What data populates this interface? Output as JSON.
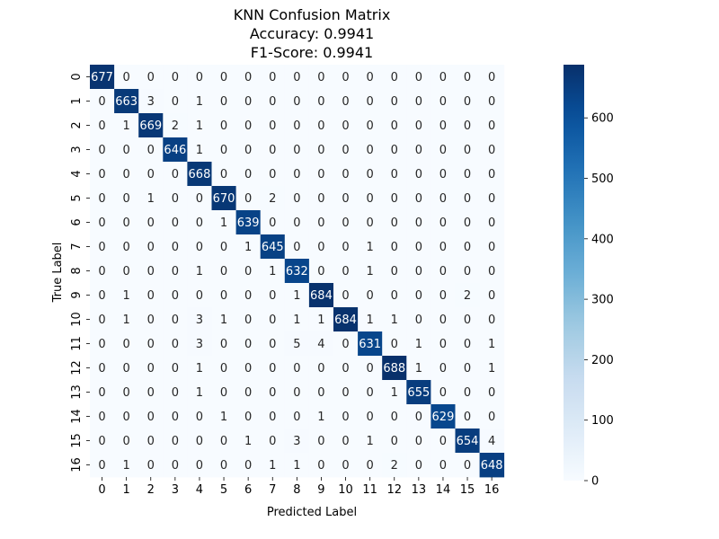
{
  "chart_data": {
    "type": "heatmap",
    "title_lines": [
      "KNN Confusion Matrix",
      "Accuracy: 0.9941",
      "F1-Score: 0.9941"
    ],
    "xlabel": "Predicted Label",
    "ylabel": "True Label",
    "x_categories": [
      "0",
      "1",
      "2",
      "3",
      "4",
      "5",
      "6",
      "7",
      "8",
      "9",
      "10",
      "11",
      "12",
      "13",
      "14",
      "15",
      "16"
    ],
    "y_categories": [
      "0",
      "1",
      "2",
      "3",
      "4",
      "5",
      "6",
      "7",
      "8",
      "9",
      "10",
      "11",
      "12",
      "13",
      "14",
      "15",
      "16"
    ],
    "matrix": [
      [
        677,
        0,
        0,
        0,
        0,
        0,
        0,
        0,
        0,
        0,
        0,
        0,
        0,
        0,
        0,
        0,
        0
      ],
      [
        0,
        663,
        3,
        0,
        1,
        0,
        0,
        0,
        0,
        0,
        0,
        0,
        0,
        0,
        0,
        0,
        0
      ],
      [
        0,
        1,
        669,
        2,
        1,
        0,
        0,
        0,
        0,
        0,
        0,
        0,
        0,
        0,
        0,
        0,
        0
      ],
      [
        0,
        0,
        0,
        646,
        1,
        0,
        0,
        0,
        0,
        0,
        0,
        0,
        0,
        0,
        0,
        0,
        0
      ],
      [
        0,
        0,
        0,
        0,
        668,
        0,
        0,
        0,
        0,
        0,
        0,
        0,
        0,
        0,
        0,
        0,
        0
      ],
      [
        0,
        0,
        1,
        0,
        0,
        670,
        0,
        2,
        0,
        0,
        0,
        0,
        0,
        0,
        0,
        0,
        0
      ],
      [
        0,
        0,
        0,
        0,
        0,
        1,
        639,
        0,
        0,
        0,
        0,
        0,
        0,
        0,
        0,
        0,
        0
      ],
      [
        0,
        0,
        0,
        0,
        0,
        0,
        1,
        645,
        0,
        0,
        0,
        1,
        0,
        0,
        0,
        0,
        0
      ],
      [
        0,
        0,
        0,
        0,
        1,
        0,
        0,
        1,
        632,
        0,
        0,
        1,
        0,
        0,
        0,
        0,
        0
      ],
      [
        0,
        1,
        0,
        0,
        0,
        0,
        0,
        0,
        1,
        684,
        0,
        0,
        0,
        0,
        0,
        2,
        0
      ],
      [
        0,
        1,
        0,
        0,
        3,
        1,
        0,
        0,
        1,
        1,
        684,
        1,
        1,
        0,
        0,
        0,
        0
      ],
      [
        0,
        0,
        0,
        0,
        3,
        0,
        0,
        0,
        5,
        4,
        0,
        631,
        0,
        1,
        0,
        0,
        1
      ],
      [
        0,
        0,
        0,
        0,
        1,
        0,
        0,
        0,
        0,
        0,
        0,
        0,
        688,
        1,
        0,
        0,
        1
      ],
      [
        0,
        0,
        0,
        0,
        1,
        0,
        0,
        0,
        0,
        0,
        0,
        0,
        1,
        655,
        0,
        0,
        0
      ],
      [
        0,
        0,
        0,
        0,
        0,
        1,
        0,
        0,
        0,
        1,
        0,
        0,
        0,
        0,
        629,
        0,
        0
      ],
      [
        0,
        0,
        0,
        0,
        0,
        0,
        1,
        0,
        3,
        0,
        0,
        1,
        0,
        0,
        0,
        654,
        4
      ],
      [
        0,
        1,
        0,
        0,
        0,
        0,
        0,
        1,
        1,
        0,
        0,
        0,
        2,
        0,
        0,
        0,
        648
      ]
    ],
    "colormap": "Blues",
    "color_range": [
      0,
      688
    ],
    "colorbar_ticks": [
      0,
      100,
      200,
      300,
      400,
      500,
      600
    ],
    "annotations": true,
    "legend": "colorbar-right"
  }
}
